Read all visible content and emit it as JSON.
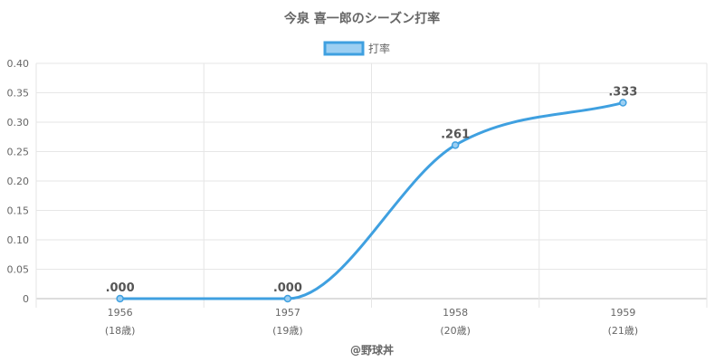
{
  "chart_data": {
    "type": "line",
    "title": "今泉 喜一郎のシーズン打率",
    "legend": {
      "position": "top",
      "label": "打率"
    },
    "colors": {
      "line": "#3fa0e0",
      "fill": "#9ccff2",
      "grid": "#e6e6e6",
      "text": "#666666"
    },
    "x": [
      "1956",
      "1957",
      "1958",
      "1959"
    ],
    "x_sublabels": [
      "(18歳)",
      "(19歳)",
      "(20歳)",
      "(21歳)"
    ],
    "series": [
      {
        "name": "打率",
        "values": [
          0.0,
          0.0,
          0.261,
          0.333
        ],
        "labels": [
          ".000",
          ".000",
          ".261",
          ".333"
        ]
      }
    ],
    "ylim": [
      0,
      0.4
    ],
    "yticks": [
      0,
      0.05,
      0.1,
      0.15,
      0.2,
      0.25,
      0.3,
      0.35,
      0.4
    ],
    "ytick_labels": [
      "0",
      "0.05",
      "0.10",
      "0.15",
      "0.20",
      "0.25",
      "0.30",
      "0.35",
      "0.40"
    ],
    "grid": true,
    "credit": "@野球丼"
  }
}
